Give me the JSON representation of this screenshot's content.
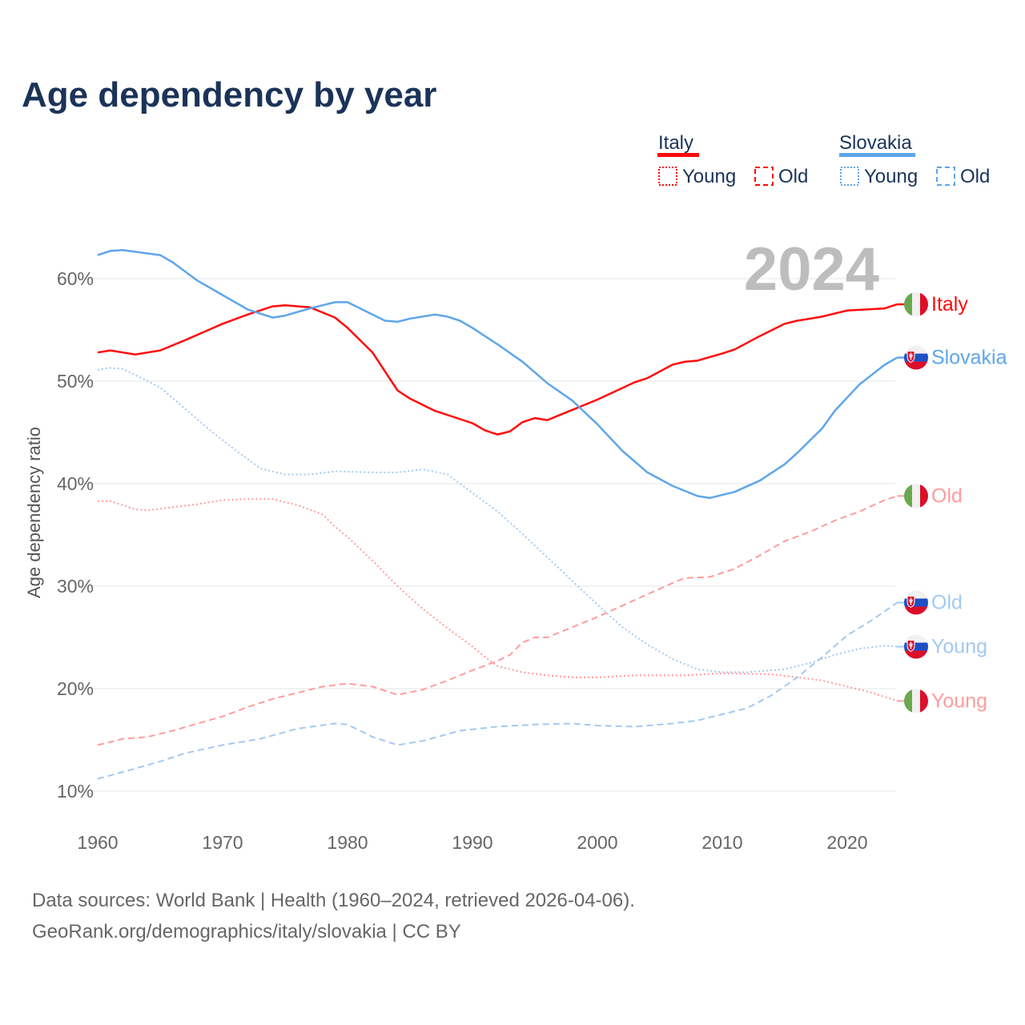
{
  "colors": {
    "italy_total": "#ff0a0a",
    "italy_part": "#ff9c9c",
    "slovakia_total": "#5ea6ea",
    "slovakia_part": "#a3c9f1",
    "title": "#1b3358"
  },
  "chart_data": {
    "type": "line",
    "title": "Age dependency by year",
    "xlabel": "",
    "ylabel": "Age dependency ratio",
    "xlim": [
      1960,
      2024
    ],
    "ylim": [
      10,
      63
    ],
    "grid": true,
    "current_year_label": "2024",
    "x_ticks": [
      "1960",
      "1970",
      "1980",
      "1990",
      "2000",
      "2010",
      "2020"
    ],
    "y_ticks": [
      {
        "value": 10,
        "label": "10%"
      },
      {
        "value": 20,
        "label": "20%"
      },
      {
        "value": 30,
        "label": "30%"
      },
      {
        "value": 40,
        "label": "40%"
      },
      {
        "value": 50,
        "label": "50%"
      },
      {
        "value": 60,
        "label": "60%"
      }
    ],
    "legend": {
      "placement": "top-right",
      "groups": [
        {
          "country": "Italy",
          "items": [
            "Young",
            "Old"
          ]
        },
        {
          "country": "Slovakia",
          "items": [
            "Young",
            "Old"
          ]
        }
      ]
    },
    "series": [
      {
        "name": "Italy",
        "country": "Italy",
        "kind": "total",
        "end_label": "Italy",
        "points": [
          [
            1960,
            52.8
          ],
          [
            1961,
            53.0
          ],
          [
            1963,
            52.6
          ],
          [
            1965,
            53.0
          ],
          [
            1967,
            54.0
          ],
          [
            1970,
            55.6
          ],
          [
            1972,
            56.5
          ],
          [
            1974,
            57.3
          ],
          [
            1975,
            57.4
          ],
          [
            1977,
            57.2
          ],
          [
            1979,
            56.2
          ],
          [
            1980,
            55.2
          ],
          [
            1982,
            52.8
          ],
          [
            1984,
            49.1
          ],
          [
            1985,
            48.3
          ],
          [
            1987,
            47.1
          ],
          [
            1990,
            45.9
          ],
          [
            1991,
            45.2
          ],
          [
            1992,
            44.8
          ],
          [
            1993,
            45.1
          ],
          [
            1994,
            46.0
          ],
          [
            1995,
            46.4
          ],
          [
            1996,
            46.2
          ],
          [
            1997,
            46.7
          ],
          [
            1998,
            47.2
          ],
          [
            2000,
            48.2
          ],
          [
            2003,
            49.9
          ],
          [
            2004,
            50.3
          ],
          [
            2006,
            51.6
          ],
          [
            2007,
            51.9
          ],
          [
            2008,
            52.0
          ],
          [
            2010,
            52.7
          ],
          [
            2011,
            53.1
          ],
          [
            2013,
            54.4
          ],
          [
            2015,
            55.6
          ],
          [
            2016,
            55.9
          ],
          [
            2018,
            56.3
          ],
          [
            2020,
            56.9
          ],
          [
            2023,
            57.1
          ],
          [
            2024,
            57.5
          ]
        ]
      },
      {
        "name": "Slovakia",
        "country": "Slovakia",
        "kind": "total",
        "end_label": "Slovakia",
        "points": [
          [
            1960,
            62.3
          ],
          [
            1961,
            62.7
          ],
          [
            1962,
            62.8
          ],
          [
            1965,
            62.3
          ],
          [
            1966,
            61.6
          ],
          [
            1968,
            59.8
          ],
          [
            1970,
            58.4
          ],
          [
            1972,
            57.0
          ],
          [
            1973,
            56.6
          ],
          [
            1974,
            56.2
          ],
          [
            1975,
            56.4
          ],
          [
            1977,
            57.1
          ],
          [
            1979,
            57.7
          ],
          [
            1980,
            57.7
          ],
          [
            1983,
            55.9
          ],
          [
            1984,
            55.8
          ],
          [
            1985,
            56.1
          ],
          [
            1987,
            56.5
          ],
          [
            1988,
            56.3
          ],
          [
            1989,
            55.9
          ],
          [
            1990,
            55.2
          ],
          [
            1992,
            53.6
          ],
          [
            1994,
            51.9
          ],
          [
            1996,
            49.8
          ],
          [
            1998,
            48.1
          ],
          [
            2000,
            45.8
          ],
          [
            2002,
            43.2
          ],
          [
            2004,
            41.1
          ],
          [
            2006,
            39.8
          ],
          [
            2008,
            38.8
          ],
          [
            2009,
            38.6
          ],
          [
            2011,
            39.2
          ],
          [
            2013,
            40.3
          ],
          [
            2015,
            41.9
          ],
          [
            2016,
            43.0
          ],
          [
            2018,
            45.4
          ],
          [
            2019,
            47.1
          ],
          [
            2021,
            49.7
          ],
          [
            2023,
            51.6
          ],
          [
            2024,
            52.3
          ]
        ]
      },
      {
        "name": "Italy Young",
        "country": "Italy",
        "kind": "young",
        "end_label": "Young",
        "points": [
          [
            1960,
            38.3
          ],
          [
            1961,
            38.3
          ],
          [
            1963,
            37.5
          ],
          [
            1964,
            37.4
          ],
          [
            1966,
            37.7
          ],
          [
            1968,
            38.0
          ],
          [
            1970,
            38.4
          ],
          [
            1972,
            38.5
          ],
          [
            1974,
            38.5
          ],
          [
            1976,
            37.9
          ],
          [
            1978,
            37.0
          ],
          [
            1979,
            35.8
          ],
          [
            1980,
            34.8
          ],
          [
            1982,
            32.5
          ],
          [
            1984,
            30.0
          ],
          [
            1986,
            27.8
          ],
          [
            1988,
            25.9
          ],
          [
            1990,
            24.1
          ],
          [
            1991,
            23.1
          ],
          [
            1992,
            22.2
          ],
          [
            1994,
            21.6
          ],
          [
            1996,
            21.3
          ],
          [
            1998,
            21.1
          ],
          [
            2000,
            21.1
          ],
          [
            2003,
            21.3
          ],
          [
            2007,
            21.3
          ],
          [
            2010,
            21.5
          ],
          [
            2014,
            21.4
          ],
          [
            2016,
            21.1
          ],
          [
            2018,
            20.8
          ],
          [
            2020,
            20.2
          ],
          [
            2022,
            19.6
          ],
          [
            2024,
            18.8
          ]
        ]
      },
      {
        "name": "Italy Old",
        "country": "Italy",
        "kind": "old",
        "end_label": "Old",
        "points": [
          [
            1960,
            14.5
          ],
          [
            1962,
            15.1
          ],
          [
            1964,
            15.3
          ],
          [
            1966,
            15.9
          ],
          [
            1968,
            16.6
          ],
          [
            1970,
            17.3
          ],
          [
            1972,
            18.2
          ],
          [
            1974,
            19.0
          ],
          [
            1976,
            19.6
          ],
          [
            1978,
            20.2
          ],
          [
            1980,
            20.5
          ],
          [
            1982,
            20.2
          ],
          [
            1984,
            19.4
          ],
          [
            1986,
            19.9
          ],
          [
            1988,
            20.8
          ],
          [
            1990,
            21.8
          ],
          [
            1992,
            22.7
          ],
          [
            1993,
            23.3
          ],
          [
            1994,
            24.5
          ],
          [
            1995,
            25.0
          ],
          [
            1996,
            25.0
          ],
          [
            1998,
            26.0
          ],
          [
            2000,
            27.0
          ],
          [
            2002,
            28.1
          ],
          [
            2004,
            29.2
          ],
          [
            2006,
            30.3
          ],
          [
            2007,
            30.8
          ],
          [
            2009,
            30.9
          ],
          [
            2011,
            31.7
          ],
          [
            2013,
            33.0
          ],
          [
            2015,
            34.4
          ],
          [
            2017,
            35.3
          ],
          [
            2019,
            36.4
          ],
          [
            2021,
            37.3
          ],
          [
            2023,
            38.4
          ],
          [
            2024,
            38.8
          ]
        ]
      },
      {
        "name": "Slovakia Young",
        "country": "Slovakia",
        "kind": "young",
        "end_label": "Young",
        "points": [
          [
            1960,
            51.1
          ],
          [
            1961,
            51.3
          ],
          [
            1962,
            51.2
          ],
          [
            1965,
            49.4
          ],
          [
            1967,
            47.3
          ],
          [
            1969,
            45.2
          ],
          [
            1971,
            43.3
          ],
          [
            1973,
            41.5
          ],
          [
            1975,
            40.9
          ],
          [
            1977,
            40.9
          ],
          [
            1979,
            41.2
          ],
          [
            1982,
            41.1
          ],
          [
            1984,
            41.1
          ],
          [
            1986,
            41.4
          ],
          [
            1988,
            40.9
          ],
          [
            1990,
            39.1
          ],
          [
            1992,
            37.3
          ],
          [
            1994,
            35.1
          ],
          [
            1996,
            32.8
          ],
          [
            1998,
            30.5
          ],
          [
            2000,
            28.2
          ],
          [
            2002,
            26.0
          ],
          [
            2004,
            24.3
          ],
          [
            2006,
            22.9
          ],
          [
            2008,
            21.9
          ],
          [
            2010,
            21.6
          ],
          [
            2012,
            21.6
          ],
          [
            2015,
            21.9
          ],
          [
            2017,
            22.5
          ],
          [
            2019,
            23.3
          ],
          [
            2021,
            23.9
          ],
          [
            2023,
            24.2
          ],
          [
            2024,
            24.1
          ]
        ]
      },
      {
        "name": "Slovakia Old",
        "country": "Slovakia",
        "kind": "old",
        "end_label": "Old",
        "points": [
          [
            1960,
            11.2
          ],
          [
            1963,
            12.2
          ],
          [
            1965,
            12.9
          ],
          [
            1967,
            13.7
          ],
          [
            1970,
            14.5
          ],
          [
            1973,
            15.1
          ],
          [
            1976,
            16.1
          ],
          [
            1979,
            16.6
          ],
          [
            1980,
            16.5
          ],
          [
            1982,
            15.3
          ],
          [
            1984,
            14.5
          ],
          [
            1986,
            14.9
          ],
          [
            1989,
            15.9
          ],
          [
            1992,
            16.3
          ],
          [
            1995,
            16.5
          ],
          [
            1998,
            16.6
          ],
          [
            2000,
            16.4
          ],
          [
            2003,
            16.3
          ],
          [
            2006,
            16.6
          ],
          [
            2008,
            16.9
          ],
          [
            2010,
            17.5
          ],
          [
            2012,
            18.1
          ],
          [
            2014,
            19.4
          ],
          [
            2016,
            21.1
          ],
          [
            2018,
            23.1
          ],
          [
            2020,
            25.2
          ],
          [
            2022,
            26.7
          ],
          [
            2024,
            28.4
          ]
        ]
      }
    ]
  },
  "footer": {
    "line1": "Data sources: World Bank | Health (1960–2024, retrieved 2026-04-06).",
    "line2": "GeoRank.org/demographics/italy/slovakia | CC BY"
  }
}
